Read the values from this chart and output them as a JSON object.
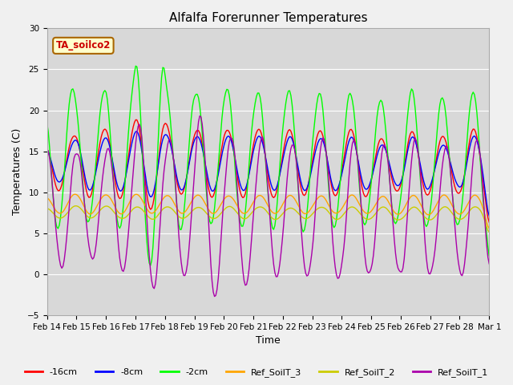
{
  "title": "Alfalfa Forerunner Temperatures",
  "xlabel": "Time",
  "ylabel": "Temperatures (C)",
  "ylim": [
    -5,
    30
  ],
  "annotation": "TA_soilco2",
  "bg_color": "#f0f0f0",
  "plot_bg": "#d8d8d8",
  "legend_entries": [
    "-16cm",
    "-8cm",
    "-2cm",
    "Ref_SoilT_3",
    "Ref_SoilT_2",
    "Ref_SoilT_1"
  ],
  "line_colors": [
    "#ff0000",
    "#0000ff",
    "#00ff00",
    "#ffa500",
    "#cccc00",
    "#aa00aa"
  ],
  "tick_labels": [
    "Feb 14",
    "Feb 15",
    "Feb 16",
    "Feb 17",
    "Feb 18",
    "Feb 19",
    "Feb 20",
    "Feb 21",
    "Feb 22",
    "Feb 23",
    "Feb 24",
    "Feb 25",
    "Feb 26",
    "Feb 27",
    "Feb 28",
    "Mar 1"
  ],
  "yticks": [
    -5,
    0,
    5,
    10,
    15,
    20,
    25,
    30
  ],
  "title_fontsize": 11,
  "axis_label_fontsize": 9,
  "tick_fontsize": 7.5,
  "legend_fontsize": 8,
  "n_days": 15,
  "hours_per_day": 24
}
